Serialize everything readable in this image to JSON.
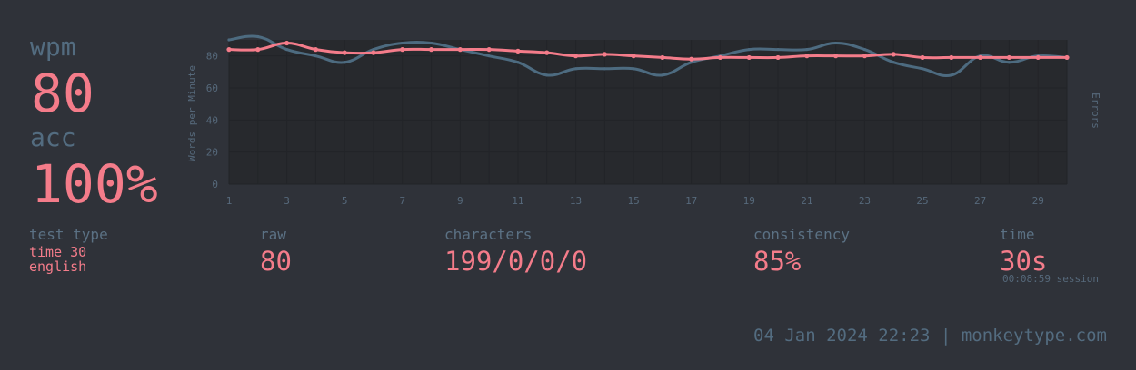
{
  "wpm": {
    "label": "wpm",
    "value": "80"
  },
  "acc": {
    "label": "acc",
    "value": "100%"
  },
  "test_type": {
    "label": "test type",
    "mode": "time 30",
    "language": "english"
  },
  "raw": {
    "label": "raw",
    "value": "80"
  },
  "characters": {
    "label": "characters",
    "value": "199/0/0/0"
  },
  "consistency": {
    "label": "consistency",
    "value": "85%"
  },
  "time": {
    "label": "time",
    "value": "30s",
    "session": "00:08:59 session"
  },
  "footer": {
    "date": "04 Jan 2024 22:23",
    "separator": "|",
    "site": "monkeytype.com"
  },
  "colors": {
    "accent": "#f47c8a",
    "sub": "#536c80",
    "bg": "#2f3239",
    "chart_bg": "#27292d",
    "raw_line": "#4d6b80"
  },
  "chart_data": {
    "type": "line",
    "x": [
      1,
      2,
      3,
      4,
      5,
      6,
      7,
      8,
      9,
      10,
      11,
      12,
      13,
      14,
      15,
      16,
      17,
      18,
      19,
      20,
      21,
      22,
      23,
      24,
      25,
      26,
      27,
      28,
      29,
      30
    ],
    "x_ticks": [
      "1",
      "3",
      "5",
      "7",
      "9",
      "11",
      "13",
      "15",
      "17",
      "19",
      "21",
      "23",
      "25",
      "27",
      "29"
    ],
    "y_ticks": [
      "0",
      "20",
      "40",
      "60",
      "80"
    ],
    "ylim": [
      0,
      90
    ],
    "ylabel": "Words per Minute",
    "y2label": "Errors",
    "grid": true,
    "series": [
      {
        "values": [
          84,
          84,
          88,
          84,
          82,
          82,
          84,
          84,
          84,
          84,
          83,
          82,
          80,
          81,
          80,
          79,
          78,
          79,
          79,
          79,
          80,
          80,
          80,
          81,
          79,
          79,
          79,
          79,
          79,
          79
        ],
        "color": "#f47c8a",
        "points": true
      },
      {
        "values": [
          90,
          92,
          84,
          80,
          76,
          84,
          88,
          88,
          84,
          80,
          76,
          68,
          72,
          72,
          72,
          68,
          76,
          80,
          84,
          84,
          84,
          88,
          84,
          76,
          72,
          68,
          80,
          76,
          80,
          79
        ],
        "color": "#4d6b80",
        "points": false
      }
    ]
  }
}
